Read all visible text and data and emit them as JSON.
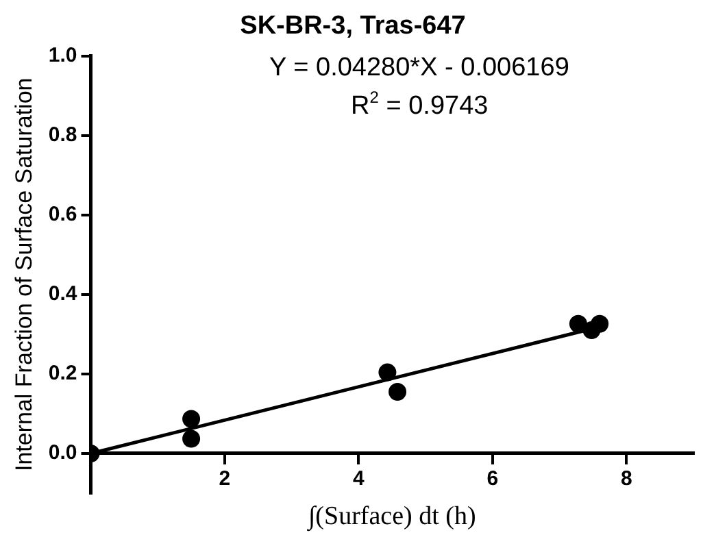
{
  "chart_data": {
    "type": "scatter",
    "title": "SK-BR-3, Tras-647",
    "xlabel": "∫(Surface) dt (h)",
    "ylabel": "Internal Fraction of Surface Saturation",
    "annotations": [
      "Y = 0.04280*X - 0.006169",
      "R$^{2}$ = 0.9743"
    ],
    "series": [
      {
        "color": "#000000",
        "marker": "circle",
        "x": [
          0,
          1.5,
          1.5,
          4.43,
          4.58,
          7.28,
          7.48,
          7.6
        ],
        "values": [
          0,
          0.087,
          0.037,
          0.204,
          0.155,
          0.326,
          0.31,
          0.326
        ]
      },
      {
        "type": "line",
        "color": "#000000",
        "marker": "none",
        "x": [
          0,
          7.4
        ],
        "values": [
          0,
          0.31
        ]
      }
    ],
    "xlim": [
      0,
      9
    ],
    "ylim": [
      -0.1,
      1.0
    ],
    "xticks": [
      2,
      4,
      6,
      8
    ],
    "yticks": [
      {
        "value": 0,
        "label": "0.0"
      },
      {
        "value": 0.2,
        "label": "0.2"
      },
      {
        "value": 0.4,
        "label": "0.4"
      },
      {
        "value": 0.6,
        "label": "0.6"
      },
      {
        "value": 0.8,
        "label": "0.8"
      },
      {
        "value": 1,
        "label": "1.0"
      }
    ],
    "grid": false,
    "legend": false
  }
}
